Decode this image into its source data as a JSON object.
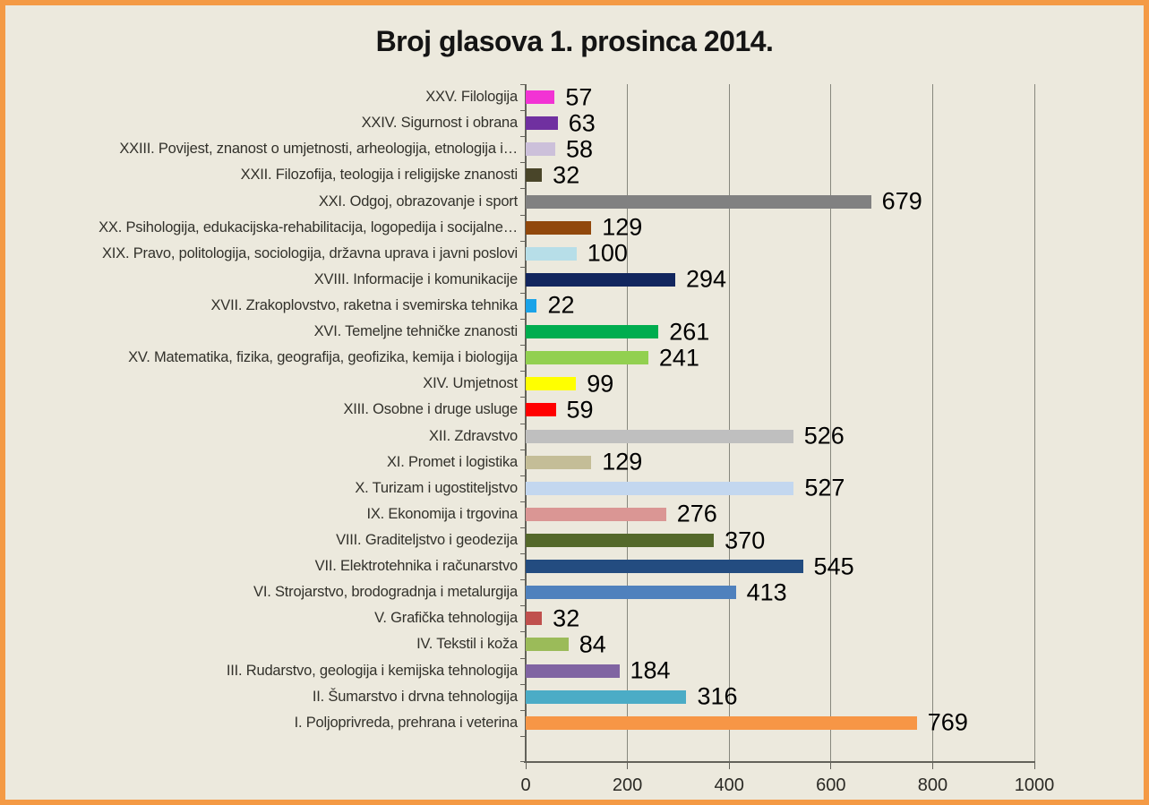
{
  "title": "Broj glasova 1. prosinca 2014.",
  "chart_data": {
    "type": "bar",
    "orientation": "horizontal",
    "title": "Broj glasova 1. prosinca 2014.",
    "categories": [
      "XXV. Filologija",
      "XXIV. Sigurnost i obrana",
      "XXIII. Povijest, znanost o umjetnosti, arheologija, etnologija i…",
      "XXII. Filozofija, teologija i religijske znanosti",
      "XXI. Odgoj, obrazovanje i sport",
      "XX. Psihologija, edukacijska-rehabilitacija, logopedija i socijalne…",
      "XIX. Pravo, politologija, sociologija, državna uprava i javni poslovi",
      "XVIII. Informacije i komunikacije",
      "XVII. Zrakoplovstvo, raketna i svemirska tehnika",
      "XVI. Temeljne tehničke znanosti",
      "XV. Matematika, fizika, geografija, geofizika, kemija i biologija",
      "XIV. Umjetnost",
      "XIII. Osobne i druge usluge",
      "XII. Zdravstvo",
      "XI. Promet i logistika",
      "X. Turizam i ugostiteljstvo",
      "IX. Ekonomija i trgovina",
      "VIII. Graditeljstvo i geodezija",
      "VII. Elektrotehnika i računarstvo",
      "VI. Strojarstvo, brodogradnja i metalurgija",
      "V. Grafička tehnologija",
      "IV. Tekstil i koža",
      "III. Rudarstvo, geologija i kemijska tehnologija",
      "II. Šumarstvo i drvna tehnologija",
      "I. Poljoprivreda, prehrana i veterina"
    ],
    "values": [
      57,
      63,
      58,
      32,
      679,
      129,
      100,
      294,
      22,
      261,
      241,
      99,
      59,
      526,
      129,
      527,
      276,
      370,
      545,
      413,
      32,
      84,
      184,
      316,
      769
    ],
    "bar_colors": [
      "#F233D4",
      "#7030A0",
      "#CCC0DA",
      "#494529",
      "#818181",
      "#91480C",
      "#B7DEE8",
      "#12265E",
      "#1AA3E8",
      "#00AD4F",
      "#92D050",
      "#FFFF00",
      "#FF0000",
      "#BFBFBF",
      "#C4BD97",
      "#C3D7EF",
      "#DA9694",
      "#54682A",
      "#234C80",
      "#4F81BD",
      "#C0504D",
      "#9BBB59",
      "#8064A2",
      "#4BACC6",
      "#F79646"
    ],
    "xlim": [
      0,
      1000
    ],
    "x_ticks": [
      0,
      200,
      400,
      600,
      800,
      1000
    ],
    "grid": "vertical-gridlines-on",
    "value_labels": "outside-end",
    "legend": "none"
  },
  "colors": {
    "background": "#ECE9DD",
    "border": "#F49A45",
    "gridline": "#87877D",
    "axis": "#63625A",
    "category_text": "#32312B",
    "value_text": "#000000",
    "title_text": "#141414"
  }
}
